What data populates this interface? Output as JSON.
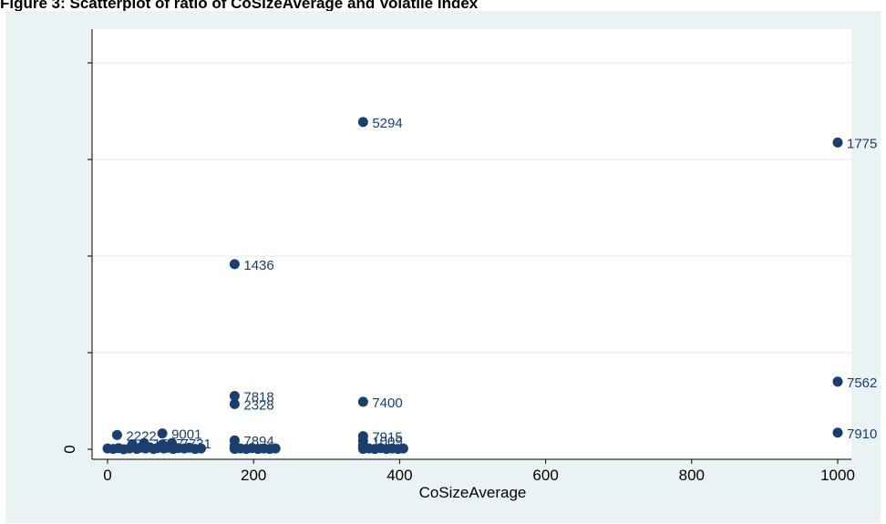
{
  "caption": "Figure 3: Scatterplot of ratio of CoSizeAverage and Volatile Index",
  "chart_data": {
    "type": "scatter",
    "title": "",
    "xlabel": "CoSizeAverage",
    "ylabel": "",
    "xlim": [
      0,
      1000
    ],
    "xticks": [
      "0",
      "200",
      "400",
      "600",
      "800",
      "1000"
    ],
    "ylim": [
      0,
      1
    ],
    "yticks": [
      "0",
      "",
      "",
      "",
      ""
    ],
    "grid": true,
    "colors": {
      "marker": "#1a3f6f",
      "label": "#1a3f6f",
      "plot_bg": "#ffffff",
      "outer_bg": "#eaf2f3",
      "grid": "#e7eef0"
    },
    "labeled_points": [
      {
        "x": 350,
        "y": 0.847,
        "label": "5294"
      },
      {
        "x": 1000,
        "y": 0.794,
        "label": "1775"
      },
      {
        "x": 174,
        "y": 0.479,
        "label": "1436"
      },
      {
        "x": 1000,
        "y": 0.175,
        "label": "7562"
      },
      {
        "x": 174,
        "y": 0.138,
        "label": "7818"
      },
      {
        "x": 174,
        "y": 0.117,
        "label": "2328"
      },
      {
        "x": 350,
        "y": 0.123,
        "label": "7400"
      },
      {
        "x": 75,
        "y": 0.041,
        "label": "9001"
      },
      {
        "x": 13,
        "y": 0.037,
        "label": "2222"
      },
      {
        "x": 1000,
        "y": 0.043,
        "label": "7910"
      },
      {
        "x": 174,
        "y": 0.023,
        "label": "7894"
      },
      {
        "x": 350,
        "y": 0.034,
        "label": "7915"
      },
      {
        "x": 350,
        "y": 0.022,
        "label": "1009"
      },
      {
        "x": 50,
        "y": 0.016,
        "label": "1587"
      },
      {
        "x": 88,
        "y": 0.016,
        "label": "7731"
      }
    ],
    "cluster_points": [
      {
        "x": 0,
        "y": 0.002
      },
      {
        "x": 8,
        "y": 0.001
      },
      {
        "x": 15,
        "y": 0.003
      },
      {
        "x": 22,
        "y": 0.0
      },
      {
        "x": 30,
        "y": 0.002
      },
      {
        "x": 35,
        "y": 0.006
      },
      {
        "x": 40,
        "y": 0.001
      },
      {
        "x": 45,
        "y": 0.004
      },
      {
        "x": 52,
        "y": 0.002
      },
      {
        "x": 58,
        "y": 0.005
      },
      {
        "x": 63,
        "y": 0.001
      },
      {
        "x": 68,
        "y": 0.003
      },
      {
        "x": 72,
        "y": 0.008
      },
      {
        "x": 77,
        "y": 0.002
      },
      {
        "x": 82,
        "y": 0.004
      },
      {
        "x": 90,
        "y": 0.001
      },
      {
        "x": 97,
        "y": 0.003
      },
      {
        "x": 105,
        "y": 0.002
      },
      {
        "x": 112,
        "y": 0.004
      },
      {
        "x": 120,
        "y": 0.001
      },
      {
        "x": 128,
        "y": 0.002
      },
      {
        "x": 174,
        "y": 0.001
      },
      {
        "x": 174,
        "y": 0.005
      },
      {
        "x": 174,
        "y": 0.009
      },
      {
        "x": 182,
        "y": 0.002
      },
      {
        "x": 190,
        "y": 0.001
      },
      {
        "x": 198,
        "y": 0.003
      },
      {
        "x": 206,
        "y": 0.001
      },
      {
        "x": 214,
        "y": 0.002
      },
      {
        "x": 222,
        "y": 0.001
      },
      {
        "x": 230,
        "y": 0.002
      },
      {
        "x": 350,
        "y": 0.001
      },
      {
        "x": 350,
        "y": 0.006
      },
      {
        "x": 350,
        "y": 0.011
      },
      {
        "x": 358,
        "y": 0.002
      },
      {
        "x": 366,
        "y": 0.001
      },
      {
        "x": 374,
        "y": 0.003
      },
      {
        "x": 382,
        "y": 0.001
      },
      {
        "x": 390,
        "y": 0.002
      },
      {
        "x": 398,
        "y": 0.001
      },
      {
        "x": 405,
        "y": 0.002
      },
      {
        "x": 34,
        "y": 0.013
      },
      {
        "x": 75,
        "y": 0.012
      }
    ]
  }
}
